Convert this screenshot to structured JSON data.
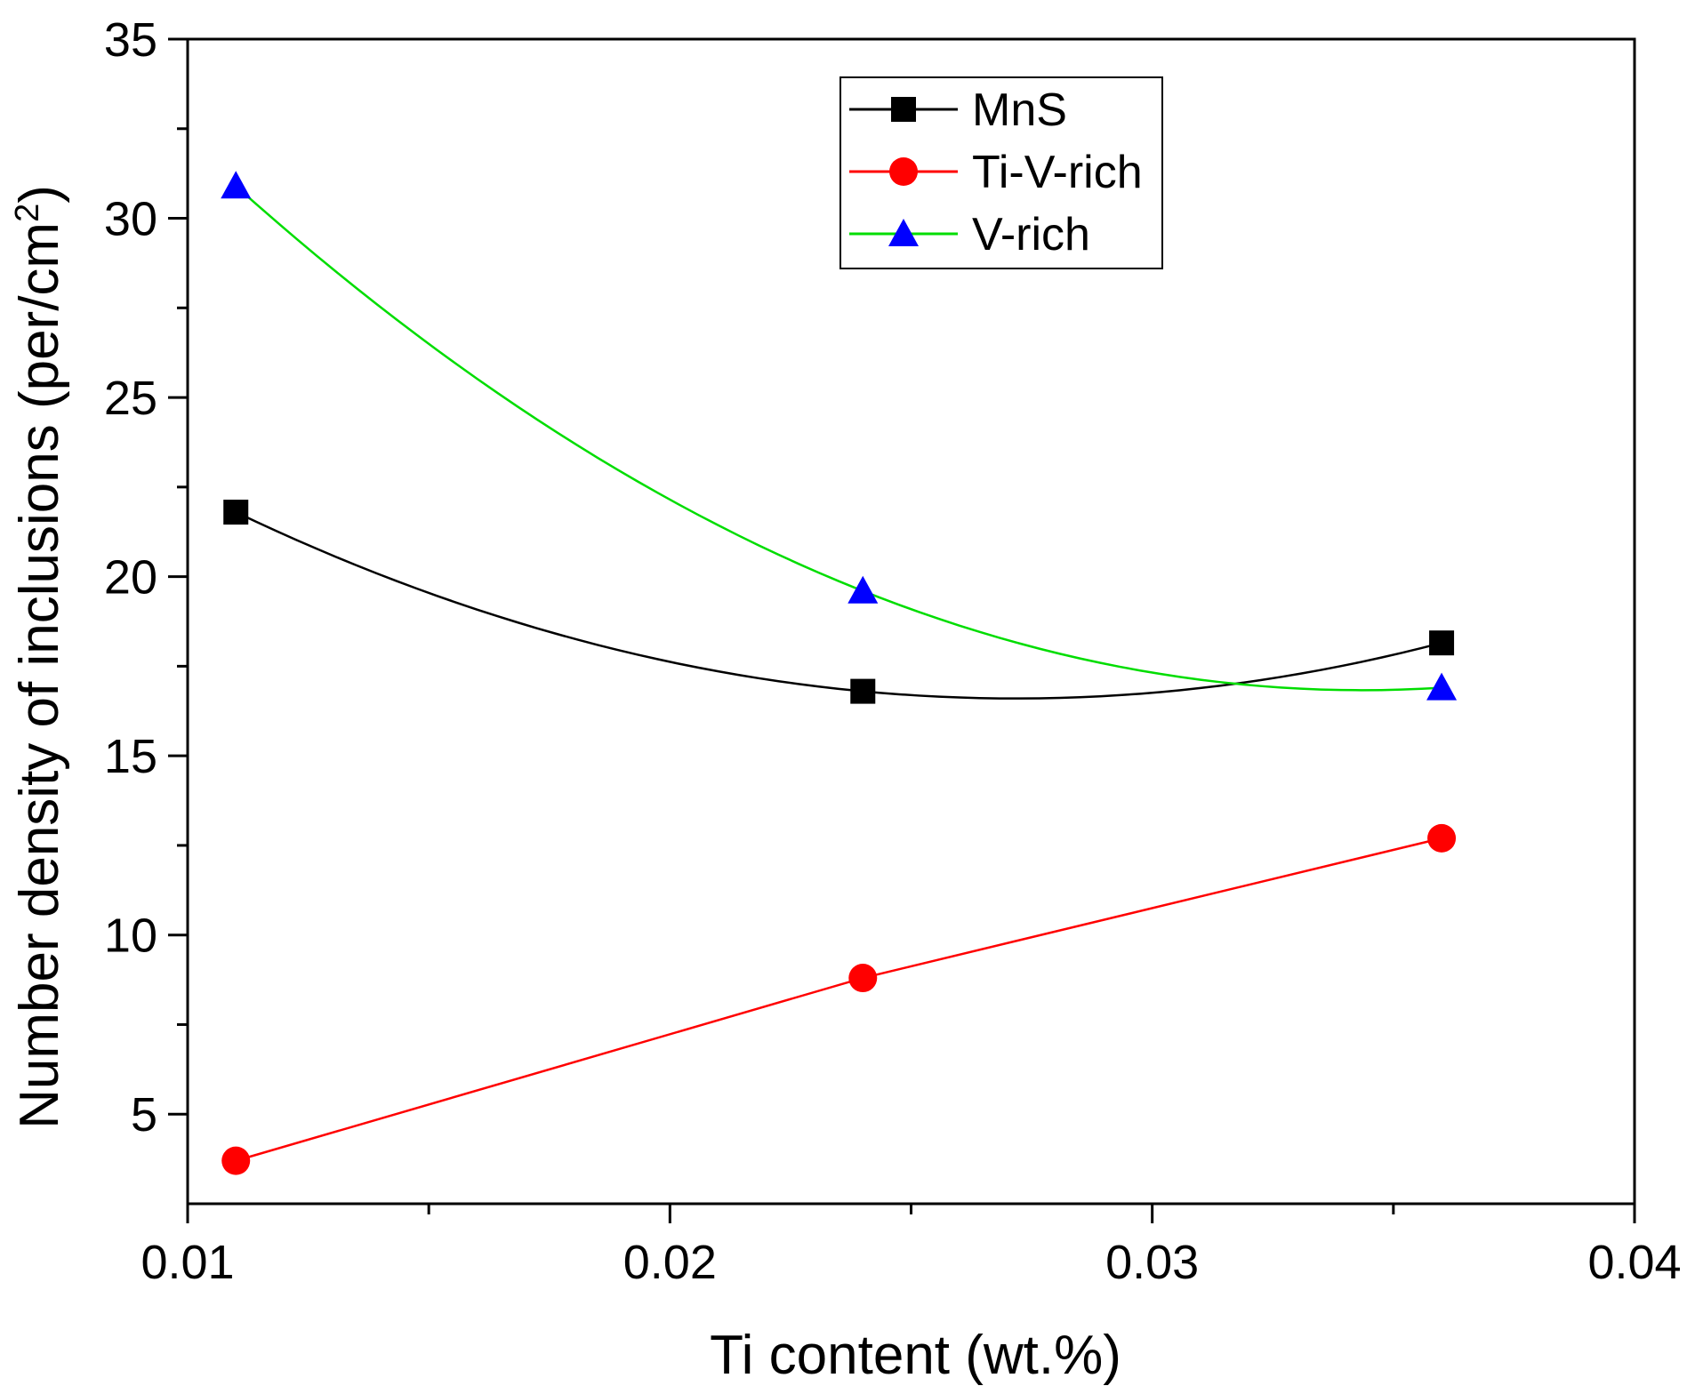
{
  "chart_data": {
    "type": "line",
    "title": "",
    "xlabel": "Ti content (wt.%)",
    "ylabel": {
      "prefix": "Number density of  inclusions (per/cm",
      "superscript": "2",
      "suffix": ")"
    },
    "xlim": [
      0.01,
      0.04
    ],
    "ylim": [
      2.5,
      35
    ],
    "xticks": [
      0.01,
      0.02,
      0.03,
      0.04
    ],
    "xtick_labels": [
      "0.01",
      "0.02",
      "0.03",
      "0.04"
    ],
    "yticks": [
      5,
      10,
      15,
      20,
      25,
      30,
      35
    ],
    "ytick_labels": [
      "5",
      "10",
      "15",
      "20",
      "25",
      "30",
      "35"
    ],
    "x": [
      0.011,
      0.024,
      0.036
    ],
    "series": [
      {
        "name": "MnS",
        "values": [
          21.8,
          16.8,
          18.15
        ],
        "color": "#000000",
        "marker": "square",
        "curve": "smooth"
      },
      {
        "name": "Ti-V-rich",
        "values": [
          3.7,
          8.8,
          12.7
        ],
        "color": "#ff0000",
        "marker": "circle",
        "curve": "linear"
      },
      {
        "name": "V-rich",
        "values": [
          30.9,
          19.6,
          16.9
        ],
        "color": "#00dd00",
        "marker_color": "#0000ff",
        "marker": "triangle",
        "curve": "smooth"
      }
    ],
    "grid": false,
    "legend_position": "top-center"
  }
}
